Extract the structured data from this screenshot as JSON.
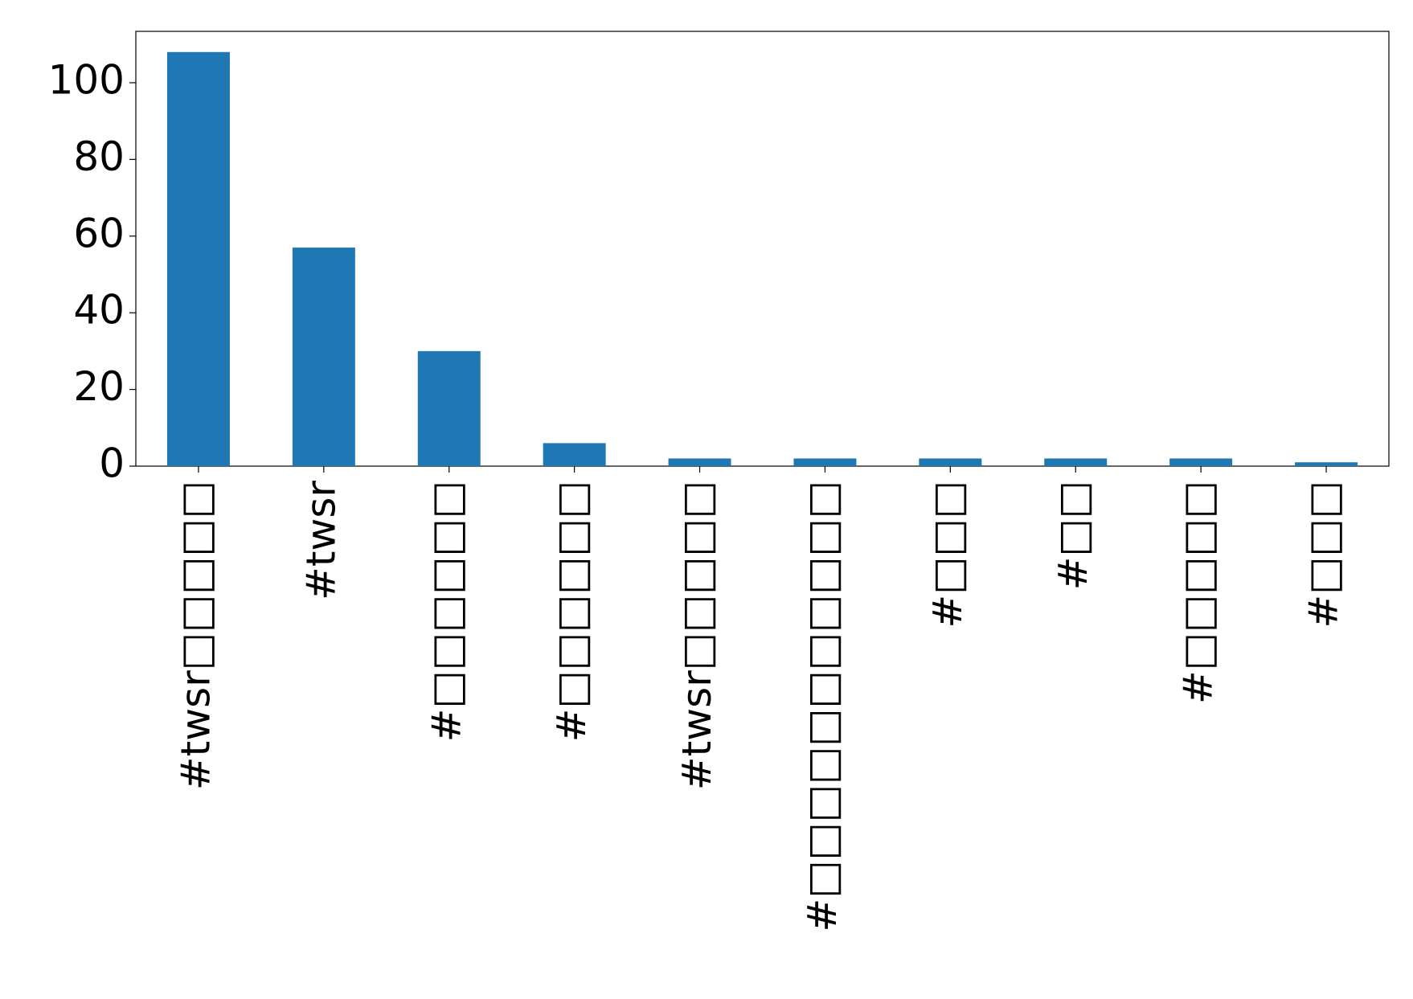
{
  "chart_data": {
    "type": "bar",
    "categories": [
      "#twsr□□□□□",
      "#twsr",
      "#□□□□□□",
      "#□□□□□□",
      "#twsr□□□□□",
      "#□□□□□□□□□□□",
      "#□□□",
      "#□□",
      "#□□□□□",
      "#□□□"
    ],
    "values": [
      108,
      57,
      30,
      6,
      2,
      2,
      2,
      2,
      2,
      1
    ],
    "color": "#1f77b4",
    "ylim": [
      0,
      113.4
    ],
    "yticks": [
      0,
      20,
      40,
      60,
      80,
      100
    ],
    "grid": false
  }
}
